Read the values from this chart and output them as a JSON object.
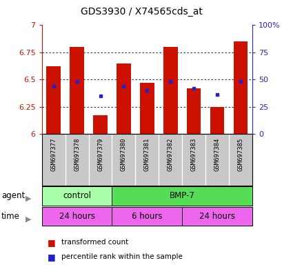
{
  "title": "GDS3930 / X74565cds_at",
  "samples": [
    "GSM697377",
    "GSM697378",
    "GSM697379",
    "GSM697380",
    "GSM697381",
    "GSM697382",
    "GSM697383",
    "GSM697384",
    "GSM697385"
  ],
  "red_values": [
    6.62,
    6.8,
    6.17,
    6.65,
    6.47,
    6.8,
    6.42,
    6.25,
    6.85
  ],
  "blue_values": [
    6.44,
    6.48,
    6.35,
    6.44,
    6.4,
    6.48,
    6.42,
    6.36,
    6.48
  ],
  "ymin": 6.0,
  "ymax": 7.0,
  "yticks_left": [
    6.0,
    6.25,
    6.5,
    6.75,
    7.0
  ],
  "yticks_right": [
    0,
    25,
    50,
    75,
    100
  ],
  "bar_color": "#CC1100",
  "dot_color": "#2222CC",
  "agent_groups": [
    {
      "label": "control",
      "start": 0,
      "end": 3,
      "color": "#AAFFAA"
    },
    {
      "label": "BMP-7",
      "start": 3,
      "end": 9,
      "color": "#55DD55"
    }
  ],
  "time_groups": [
    {
      "label": "24 hours",
      "start": 0,
      "end": 3,
      "color": "#EE66EE"
    },
    {
      "label": "6 hours",
      "start": 3,
      "end": 6,
      "color": "#EE66EE"
    },
    {
      "label": "24 hours",
      "start": 6,
      "end": 9,
      "color": "#EE66EE"
    }
  ],
  "legend_red": "transformed count",
  "legend_blue": "percentile rank within the sample",
  "left_tick_color": "#CC1100",
  "right_tick_color": "#2222CC"
}
